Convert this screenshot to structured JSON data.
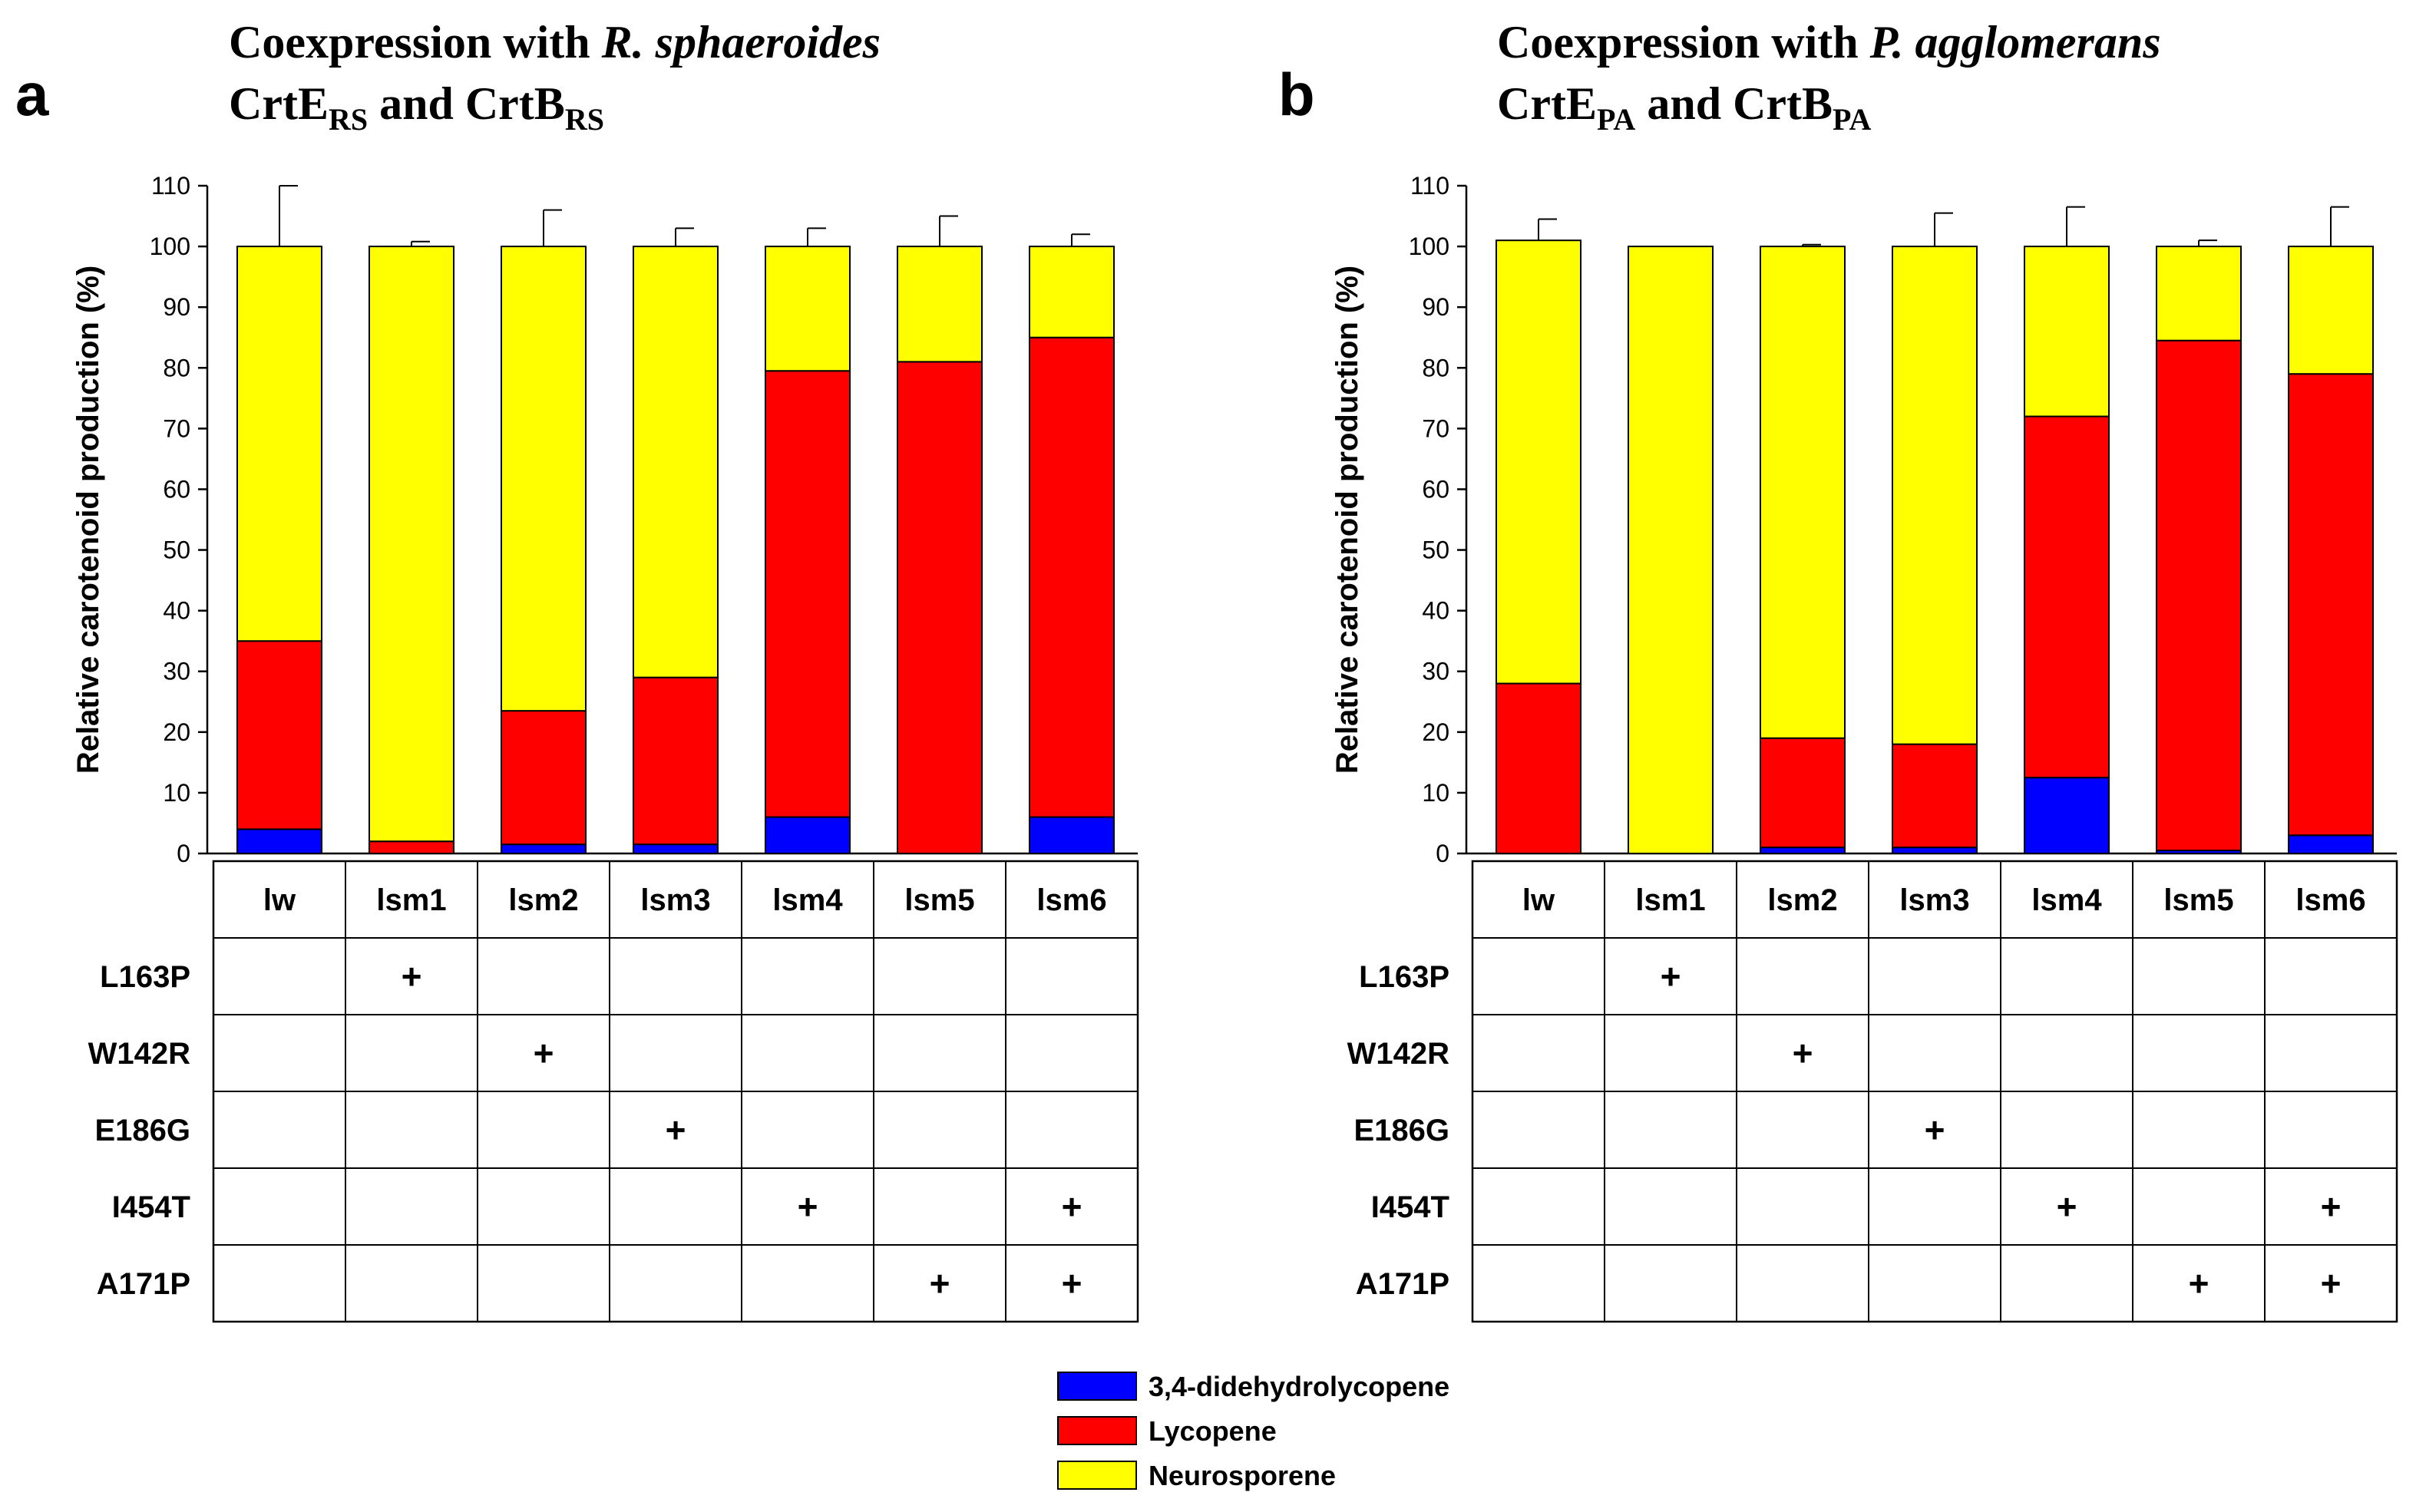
{
  "figure": {
    "legend": [
      {
        "name": "3,4-didehydrolycopene",
        "color": "#0000ff"
      },
      {
        "name": "Lycopene",
        "color": "#ff0000"
      },
      {
        "name": "Neurosporene",
        "color": "#ffff00"
      }
    ],
    "mutations": [
      "L163P",
      "W142R",
      "E186G",
      "I454T",
      "A171P"
    ],
    "mutation_matrix": {
      "lw": [],
      "lsm1": [
        "L163P"
      ],
      "lsm2": [
        "W142R"
      ],
      "lsm3": [
        "E186G"
      ],
      "lsm4": [
        "I454T"
      ],
      "lsm5": [
        "A171P"
      ],
      "lsm6": [
        "I454T",
        "A171P"
      ]
    },
    "plus_symbol": "+"
  },
  "chart_data": [
    {
      "type": "bar",
      "stacked": true,
      "panel_letter": "a",
      "title_line1": "Coexpression with ",
      "title_species": "R. sphaeroides",
      "title_line2": {
        "p1": "CrtE",
        "s1": "RS",
        "p2": " and CrtB",
        "s2": "RS"
      },
      "ylabel": "Relative carotenoid production (%)",
      "ylim": [
        0,
        110
      ],
      "yticks": [
        0,
        10,
        20,
        30,
        40,
        50,
        60,
        70,
        80,
        90,
        100,
        110
      ],
      "categories": [
        "lw",
        "lsm1",
        "lsm2",
        "lsm3",
        "lsm4",
        "lsm5",
        "lsm6"
      ],
      "category_labels": [
        "lw",
        "lsm1",
        "lsm2",
        "lsm3",
        "lsm4",
        "lsm5",
        "lsm6"
      ],
      "series": [
        {
          "name": "3,4-didehydrolycopene",
          "color": "#0000ff",
          "values": [
            4,
            0,
            1.5,
            1.5,
            6,
            0,
            6
          ],
          "error": [
            2.5,
            0,
            0,
            0,
            0,
            0,
            4.5
          ]
        },
        {
          "name": "Lycopene",
          "color": "#ff0000",
          "values": [
            31,
            2,
            22,
            27.5,
            73.5,
            81,
            79
          ],
          "error": [
            7,
            1,
            6,
            2.5,
            2.5,
            4.5,
            2.5
          ]
        },
        {
          "name": "Neurosporene",
          "color": "#ffff00",
          "values": [
            65,
            98,
            76.5,
            71,
            20.5,
            19,
            15
          ],
          "error": [
            10,
            0.8,
            6,
            3,
            3,
            5,
            2
          ]
        }
      ]
    },
    {
      "type": "bar",
      "stacked": true,
      "panel_letter": "b",
      "title_line1": "Coexpression with ",
      "title_species": "P. agglomerans",
      "title_line2": {
        "p1": "CrtE",
        "s1": "PA",
        "p2": " and CrtB",
        "s2": "PA"
      },
      "ylabel": "Relative carotenoid production (%)",
      "ylim": [
        0,
        110
      ],
      "yticks": [
        0,
        10,
        20,
        30,
        40,
        50,
        60,
        70,
        80,
        90,
        100,
        110
      ],
      "categories": [
        "lw",
        "lsm1",
        "lsm2",
        "lsm3",
        "lsm4",
        "lsm5",
        "lsm6"
      ],
      "category_labels": [
        "lw",
        "lsm1",
        "lsm2",
        "lsm3",
        "lsm4",
        "lsm5",
        "lsm6"
      ],
      "series": [
        {
          "name": "3,4-didehydrolycopene",
          "color": "#0000ff",
          "values": [
            0,
            0,
            1,
            1,
            12.5,
            0.5,
            3
          ],
          "error": [
            0,
            0,
            0,
            0,
            0,
            0,
            2.5
          ]
        },
        {
          "name": "Lycopene",
          "color": "#ff0000",
          "values": [
            28,
            0,
            18,
            17,
            59.5,
            84,
            76
          ],
          "error": [
            4,
            0,
            0.5,
            4.5,
            6.5,
            1.5,
            3
          ]
        },
        {
          "name": "Neurosporene",
          "color": "#ffff00",
          "values": [
            73,
            100,
            81,
            82,
            28,
            15.5,
            21
          ],
          "error": [
            3.5,
            0,
            0.3,
            5.5,
            6.5,
            1,
            6.5
          ]
        }
      ]
    }
  ]
}
